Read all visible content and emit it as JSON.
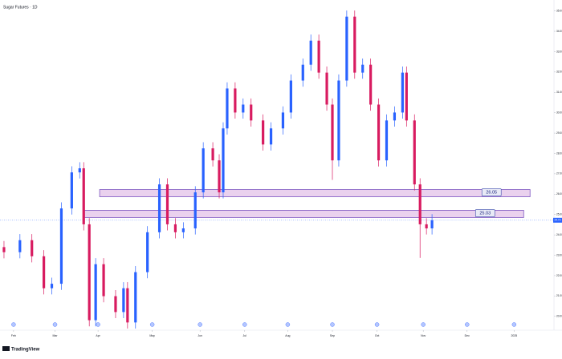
{
  "chart_data": {
    "type": "candlestick",
    "title": "Sugar Futures · 1D",
    "brand": "TradingView",
    "up_color": "#2962ff",
    "down_color": "#d81b60",
    "x": [
      0,
      20,
      35,
      50,
      60,
      72,
      85,
      95,
      100,
      107,
      115,
      125,
      140,
      150,
      155,
      165,
      180,
      195,
      205,
      215,
      225,
      240,
      250,
      262,
      270,
      275,
      280,
      290,
      300,
      310,
      325,
      335,
      350,
      360,
      375,
      385,
      395,
      405,
      412,
      420,
      430,
      440,
      450,
      460,
      470,
      480,
      490,
      500,
      505,
      515,
      522,
      530,
      537
    ],
    "open": [
      23.4,
      23.15,
      23.74,
      22.95,
      21.38,
      21.6,
      25.3,
      27.07,
      27.27,
      24.52,
      19.81,
      22.56,
      20.99,
      20.21,
      21.38,
      19.7,
      22.17,
      24.13,
      26.48,
      24.52,
      24.13,
      24.32,
      26.09,
      28.25,
      27.66,
      26.09,
      29.23,
      31.19,
      30.01,
      30.4,
      29.62,
      28.44,
      29.23,
      30.01,
      31.58,
      32.36,
      33.54,
      31.97,
      30.4,
      27.66,
      31.58,
      34.72,
      31.97,
      32.36,
      30.4,
      27.66,
      29.62,
      30.01,
      31.97,
      29.62,
      26.48,
      24.52,
      24.32
    ],
    "high": [
      23.7,
      24.04,
      24.04,
      23.25,
      21.9,
      25.6,
      27.37,
      27.57,
      27.57,
      24.82,
      22.86,
      22.86,
      21.29,
      21.68,
      21.68,
      22.47,
      24.43,
      26.78,
      26.78,
      24.82,
      24.62,
      26.39,
      28.55,
      28.55,
      27.96,
      29.53,
      31.49,
      31.49,
      30.7,
      30.7,
      29.92,
      29.53,
      30.31,
      31.88,
      32.66,
      33.84,
      33.84,
      32.27,
      30.7,
      31.88,
      35.02,
      35.02,
      32.66,
      32.66,
      30.7,
      29.92,
      30.31,
      32.27,
      32.27,
      29.92,
      26.78,
      24.82,
      25.02
    ],
    "low": [
      22.85,
      22.85,
      22.65,
      21.08,
      21.08,
      21.3,
      25.0,
      26.77,
      24.22,
      19.51,
      19.51,
      20.69,
      19.91,
      19.91,
      19.4,
      19.4,
      21.87,
      23.83,
      24.22,
      23.83,
      23.83,
      24.02,
      25.79,
      27.36,
      25.79,
      25.79,
      28.93,
      29.71,
      29.71,
      29.32,
      28.14,
      28.14,
      28.93,
      29.71,
      31.28,
      32.06,
      31.67,
      30.1,
      26.7,
      27.36,
      31.28,
      31.67,
      31.67,
      30.1,
      27.36,
      27.36,
      29.32,
      29.71,
      29.32,
      26.18,
      22.87,
      24.02,
      24.02
    ],
    "close": [
      23.15,
      23.74,
      22.95,
      21.38,
      21.6,
      25.3,
      27.07,
      27.27,
      24.52,
      19.81,
      22.56,
      20.99,
      20.21,
      21.38,
      19.7,
      22.17,
      24.13,
      26.48,
      24.52,
      24.13,
      24.32,
      26.09,
      28.25,
      27.66,
      26.09,
      29.23,
      31.19,
      30.01,
      30.4,
      29.62,
      28.44,
      29.23,
      30.01,
      31.58,
      32.36,
      33.54,
      31.97,
      30.4,
      27.66,
      31.58,
      34.72,
      31.97,
      32.36,
      30.4,
      27.66,
      29.62,
      30.01,
      31.97,
      29.62,
      26.48,
      24.52,
      24.32,
      24.72
    ],
    "xlim": [
      -5,
      690
    ],
    "xticks": [
      {
        "value": 12,
        "label": "Feb"
      },
      {
        "value": 64,
        "label": "Mar"
      },
      {
        "value": 118,
        "label": "Apr"
      },
      {
        "value": 186,
        "label": "May"
      },
      {
        "value": 246,
        "label": "Jun"
      },
      {
        "value": 302,
        "label": "Jul"
      },
      {
        "value": 356,
        "label": "Aug"
      },
      {
        "value": 412,
        "label": "Sep"
      },
      {
        "value": 468,
        "label": "Oct"
      },
      {
        "value": 526,
        "label": "Nov"
      },
      {
        "value": 581,
        "label": "Dec"
      },
      {
        "value": 640,
        "label": "2025"
      }
    ],
    "ylim": [
      19.4,
      35.3
    ],
    "yticks": [
      {
        "value": 20,
        "label": "20.00"
      },
      {
        "value": 21,
        "label": "21.00"
      },
      {
        "value": 22,
        "label": "22.00"
      },
      {
        "value": 23,
        "label": "23.00"
      },
      {
        "value": 24,
        "label": "24.00"
      },
      {
        "value": 25,
        "label": "25.00"
      },
      {
        "value": 26,
        "label": "26.00"
      },
      {
        "value": 27,
        "label": "27.00"
      },
      {
        "value": 28,
        "label": "28.00"
      },
      {
        "value": 29,
        "label": "29.00"
      },
      {
        "value": 30,
        "label": "30.00"
      },
      {
        "value": 31,
        "label": "31.00"
      },
      {
        "value": 32,
        "label": "32.00"
      },
      {
        "value": 33,
        "label": "33.00"
      },
      {
        "value": 34,
        "label": "34.00"
      },
      {
        "value": 35,
        "label": "35.00"
      }
    ],
    "levels": [
      {
        "value": 26.05,
        "label": "26.05",
        "x0": 120,
        "x1": 660
      },
      {
        "value": 25.03,
        "label": "25.03",
        "x0": 101,
        "x1": 652
      }
    ],
    "last_price": {
      "value": 24.72,
      "label": "24.72"
    }
  }
}
